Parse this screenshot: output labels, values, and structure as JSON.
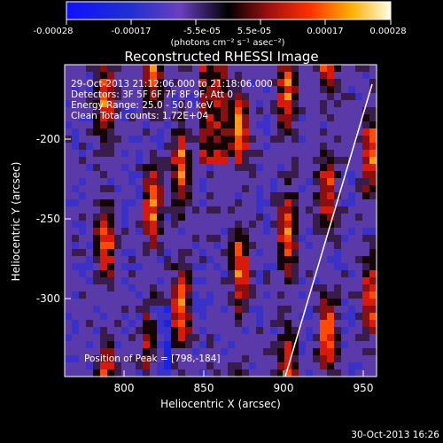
{
  "colorbar": {
    "tick_labels": [
      "-0.00028",
      "-0.00017",
      "-5.5e-05",
      "5.5e-05",
      "0.00017",
      "0.00028"
    ],
    "units_label": "(photons cm⁻² s⁻¹ asec⁻²)"
  },
  "title": "Reconstructed RHESSI Image",
  "info_lines": [
    "29-Oct-2013 21:12:06.000 to 21:18:06.000",
    "Detectors: 3F 5F 6F 7F 8F 9F, Att 0",
    "Energy Range: 25.0 - 50.0 keV",
    "Clean    Total counts: 1.72E+04"
  ],
  "peak_text": "Position of Peak = [798,-184]",
  "x_axis": {
    "label": "Heliocentric X (arcsec)",
    "ticks": [
      "800",
      "850",
      "900",
      "950"
    ]
  },
  "y_axis": {
    "label": "Heliocentric Y (arcsec)",
    "ticks": [
      "-200",
      "-250",
      "-300"
    ]
  },
  "footer_date": "30-Oct-2013 16:26",
  "colors": {
    "background": "#000000",
    "limb_line": "#ffffff"
  }
}
